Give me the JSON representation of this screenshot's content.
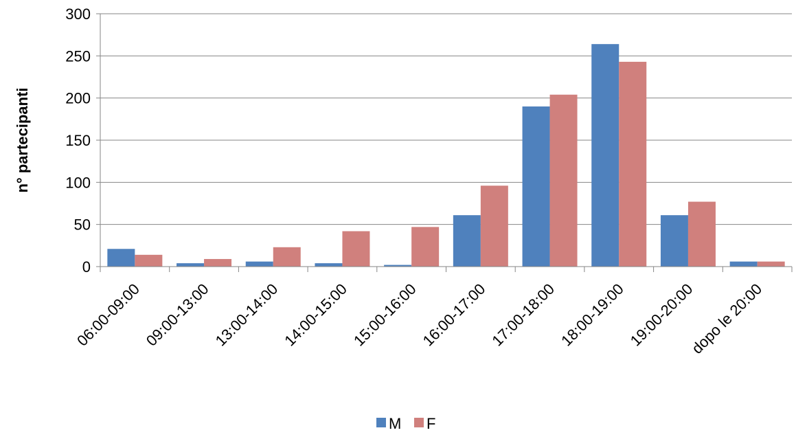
{
  "chart_data": {
    "type": "bar",
    "ylabel": "n° partecipanti",
    "xlabel": "",
    "ylim": [
      0,
      300
    ],
    "yticks": [
      0,
      50,
      100,
      150,
      200,
      250,
      300
    ],
    "grid": true,
    "legend_position": "bottom",
    "categories": [
      "06:00-09:00",
      "09:00-13:00",
      "13:00-14:00",
      "14:00-15:00",
      "15:00-16:00",
      "16:00-17:00",
      "17:00-18:00",
      "18:00-19:00",
      "19:00-20:00",
      "dopo le 20:00"
    ],
    "series": [
      {
        "name": "M",
        "color": "#4f81bd",
        "values": [
          21,
          4,
          6,
          4,
          2,
          61,
          190,
          264,
          61,
          6
        ]
      },
      {
        "name": "F",
        "color": "#d0807d",
        "values": [
          14,
          9,
          23,
          42,
          47,
          96,
          204,
          243,
          77,
          6
        ]
      }
    ]
  }
}
